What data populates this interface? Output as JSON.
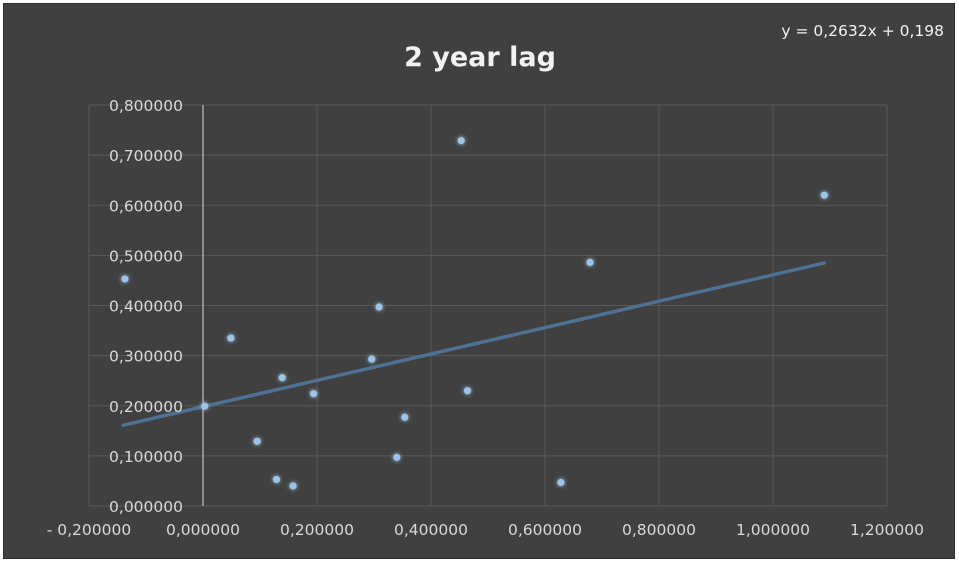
{
  "chart_data": {
    "type": "scatter",
    "title": "2 year lag",
    "xlabel": "",
    "ylabel": "",
    "xlim": [
      -0.2,
      1.2
    ],
    "ylim": [
      0.0,
      0.8
    ],
    "x_ticks": [
      -0.2,
      0.0,
      0.2,
      0.4,
      0.6,
      0.8,
      1.0,
      1.2
    ],
    "x_tick_labels": [
      "- 0,200000",
      "0,000000",
      "0,200000",
      "0,400000",
      "0,600000",
      "0,800000",
      "1,000000",
      "1,200000"
    ],
    "y_ticks": [
      0.0,
      0.1,
      0.2,
      0.3,
      0.4,
      0.5,
      0.6,
      0.7,
      0.8
    ],
    "y_tick_labels": [
      "0,000000",
      "0,100000",
      "0,200000",
      "0,300000",
      "0,400000",
      "0,500000",
      "0,600000",
      "0,700000",
      "0,800000"
    ],
    "grid": true,
    "marker_color": "#9dc3e6",
    "trendline_color": "#4f7193",
    "trendline": {
      "equation": "y = 0,2632x + 0,198",
      "slope": 0.2632,
      "intercept": 0.198,
      "x_range": [
        -0.14,
        1.09
      ]
    },
    "points": [
      {
        "x": -0.137,
        "y": 0.453
      },
      {
        "x": 0.003,
        "y": 0.199
      },
      {
        "x": 0.049,
        "y": 0.335
      },
      {
        "x": 0.095,
        "y": 0.129
      },
      {
        "x": 0.129,
        "y": 0.053
      },
      {
        "x": 0.139,
        "y": 0.256
      },
      {
        "x": 0.158,
        "y": 0.04
      },
      {
        "x": 0.194,
        "y": 0.224
      },
      {
        "x": 0.296,
        "y": 0.293
      },
      {
        "x": 0.309,
        "y": 0.397
      },
      {
        "x": 0.34,
        "y": 0.097
      },
      {
        "x": 0.354,
        "y": 0.177
      },
      {
        "x": 0.453,
        "y": 0.729
      },
      {
        "x": 0.464,
        "y": 0.23
      },
      {
        "x": 0.628,
        "y": 0.047
      },
      {
        "x": 0.679,
        "y": 0.486
      },
      {
        "x": 1.09,
        "y": 0.62
      }
    ]
  }
}
